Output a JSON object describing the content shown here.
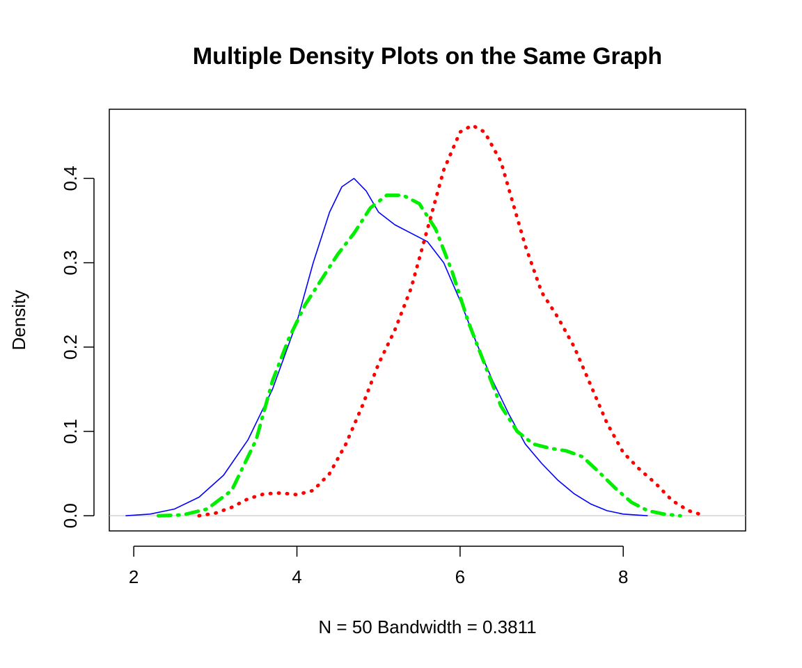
{
  "chart_data": {
    "type": "line",
    "title": "Multiple Density Plots on the Same Graph",
    "xlabel": "N = 50   Bandwidth = 0.3811",
    "ylabel": "Density",
    "xlim": [
      1.7,
      9.5
    ],
    "ylim": [
      -0.018,
      0.482
    ],
    "x_ticks": [
      2,
      4,
      6,
      8
    ],
    "x_tick_labels": [
      "2",
      "4",
      "6",
      "8"
    ],
    "y_ticks": [
      0.0,
      0.1,
      0.2,
      0.3,
      0.4
    ],
    "y_tick_labels": [
      "0.0",
      "0.1",
      "0.2",
      "0.3",
      "0.4"
    ],
    "grid": false,
    "zero_line": true,
    "series": [
      {
        "color": "#0000ff",
        "line_style": "solid",
        "points": [
          [
            1.9,
            0.0
          ],
          [
            2.2,
            0.002
          ],
          [
            2.5,
            0.008
          ],
          [
            2.8,
            0.022
          ],
          [
            3.1,
            0.048
          ],
          [
            3.4,
            0.09
          ],
          [
            3.7,
            0.15
          ],
          [
            4.0,
            0.23
          ],
          [
            4.2,
            0.3
          ],
          [
            4.4,
            0.36
          ],
          [
            4.55,
            0.39
          ],
          [
            4.7,
            0.4
          ],
          [
            4.85,
            0.385
          ],
          [
            5.0,
            0.36
          ],
          [
            5.2,
            0.345
          ],
          [
            5.4,
            0.335
          ],
          [
            5.6,
            0.325
          ],
          [
            5.8,
            0.3
          ],
          [
            6.0,
            0.255
          ],
          [
            6.2,
            0.205
          ],
          [
            6.4,
            0.16
          ],
          [
            6.6,
            0.12
          ],
          [
            6.8,
            0.085
          ],
          [
            7.0,
            0.062
          ],
          [
            7.2,
            0.042
          ],
          [
            7.4,
            0.026
          ],
          [
            7.6,
            0.014
          ],
          [
            7.8,
            0.006
          ],
          [
            8.0,
            0.002
          ],
          [
            8.3,
            0.0
          ]
        ]
      },
      {
        "color": "#00ee00",
        "line_style": "dashdot",
        "points": [
          [
            2.3,
            0.0
          ],
          [
            2.6,
            0.001
          ],
          [
            2.9,
            0.008
          ],
          [
            3.2,
            0.03
          ],
          [
            3.5,
            0.09
          ],
          [
            3.7,
            0.16
          ],
          [
            3.9,
            0.21
          ],
          [
            4.1,
            0.25
          ],
          [
            4.3,
            0.28
          ],
          [
            4.5,
            0.31
          ],
          [
            4.7,
            0.335
          ],
          [
            4.9,
            0.365
          ],
          [
            5.1,
            0.38
          ],
          [
            5.3,
            0.38
          ],
          [
            5.5,
            0.37
          ],
          [
            5.7,
            0.34
          ],
          [
            5.9,
            0.29
          ],
          [
            6.1,
            0.23
          ],
          [
            6.3,
            0.18
          ],
          [
            6.5,
            0.13
          ],
          [
            6.7,
            0.1
          ],
          [
            6.9,
            0.085
          ],
          [
            7.1,
            0.08
          ],
          [
            7.3,
            0.077
          ],
          [
            7.5,
            0.07
          ],
          [
            7.7,
            0.052
          ],
          [
            7.9,
            0.033
          ],
          [
            8.1,
            0.016
          ],
          [
            8.3,
            0.006
          ],
          [
            8.5,
            0.002
          ],
          [
            8.7,
            0.0
          ]
        ]
      },
      {
        "color": "#ff0000",
        "line_style": "dotted",
        "points": [
          [
            2.8,
            0.0
          ],
          [
            3.0,
            0.003
          ],
          [
            3.2,
            0.01
          ],
          [
            3.4,
            0.02
          ],
          [
            3.6,
            0.026
          ],
          [
            3.8,
            0.027
          ],
          [
            4.0,
            0.025
          ],
          [
            4.2,
            0.03
          ],
          [
            4.4,
            0.05
          ],
          [
            4.6,
            0.085
          ],
          [
            4.8,
            0.13
          ],
          [
            5.0,
            0.18
          ],
          [
            5.2,
            0.22
          ],
          [
            5.4,
            0.27
          ],
          [
            5.6,
            0.34
          ],
          [
            5.8,
            0.41
          ],
          [
            6.0,
            0.455
          ],
          [
            6.15,
            0.463
          ],
          [
            6.3,
            0.455
          ],
          [
            6.5,
            0.42
          ],
          [
            6.65,
            0.37
          ],
          [
            6.8,
            0.32
          ],
          [
            7.0,
            0.265
          ],
          [
            7.2,
            0.235
          ],
          [
            7.4,
            0.2
          ],
          [
            7.6,
            0.155
          ],
          [
            7.8,
            0.11
          ],
          [
            8.0,
            0.075
          ],
          [
            8.2,
            0.055
          ],
          [
            8.4,
            0.038
          ],
          [
            8.6,
            0.018
          ],
          [
            8.8,
            0.006
          ],
          [
            9.0,
            0.0
          ]
        ]
      }
    ]
  }
}
